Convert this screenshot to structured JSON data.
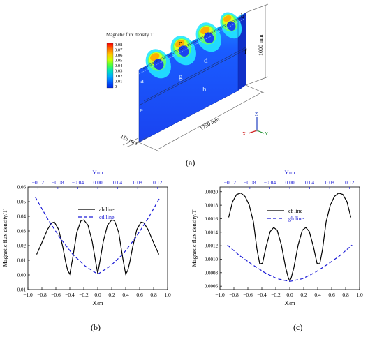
{
  "figure_a": {
    "label": "(a)",
    "colorbar": {
      "title": "Magnetic flux density  T",
      "ticks": [
        "0.08",
        "0.07",
        "0.06",
        "0.05",
        "0.04",
        "0.03",
        "0.02",
        "0.01",
        "0"
      ],
      "colors": [
        "#ff0000",
        "#ff6a00",
        "#ffc800",
        "#c8ff00",
        "#45ff45",
        "#00e0c0",
        "#00a8ff",
        "#005cff",
        "#0020e0"
      ]
    },
    "dimensions": {
      "height": "1000 mm",
      "length": "1750 mm",
      "thickness": "115 mm"
    },
    "points": {
      "a": "a",
      "b": "b",
      "c": "c",
      "d": "d",
      "e": "e",
      "f": "f",
      "g": "g",
      "h": "h"
    },
    "axes": {
      "z": "Z",
      "x": "X",
      "y": "Y"
    }
  },
  "chart_data": [
    {
      "type": "line",
      "panel": "(b)",
      "xlabel": "X/m",
      "ylabel": "Magnetic flux density/T",
      "top_xlabel": "Y/m",
      "x_ticks": [
        "−1.0",
        "−0.8",
        "−0.6",
        "−0.4",
        "−0.2",
        "0.0",
        "0.2",
        "0.4",
        "0.6",
        "0.8",
        "1.0"
      ],
      "top_ticks": [
        "−0.12",
        "−0.08",
        "−0.04",
        "0.00",
        "0.04",
        "0.08",
        "0.12"
      ],
      "y_ticks": [
        "−0.01",
        "0.00",
        "0.01",
        "0.02",
        "0.03",
        "0.04",
        "0.05",
        "0.06"
      ],
      "xlim": [
        -1.0,
        1.0
      ],
      "ylim": [
        -0.01,
        0.06
      ],
      "top_xlim": [
        -0.14,
        0.14
      ],
      "series": [
        {
          "name": "ab line",
          "axis": "bottom",
          "color": "#000000",
          "dash": "",
          "x": [
            -0.875,
            -0.8,
            -0.72,
            -0.66,
            -0.62,
            -0.56,
            -0.5,
            -0.46,
            -0.43,
            -0.4,
            -0.36,
            -0.3,
            -0.24,
            -0.2,
            -0.14,
            -0.08,
            -0.03,
            0.0,
            0.03,
            0.08,
            0.14,
            0.2,
            0.24,
            0.3,
            0.36,
            0.4,
            0.43,
            0.46,
            0.5,
            0.56,
            0.62,
            0.66,
            0.72,
            0.8,
            0.875
          ],
          "y": [
            0.014,
            0.022,
            0.031,
            0.0355,
            0.036,
            0.031,
            0.019,
            0.009,
            0.003,
            0.0005,
            0.011,
            0.029,
            0.037,
            0.0375,
            0.034,
            0.023,
            0.009,
            0.001,
            0.009,
            0.023,
            0.034,
            0.0375,
            0.037,
            0.029,
            0.011,
            0.0005,
            0.003,
            0.009,
            0.019,
            0.031,
            0.036,
            0.0355,
            0.031,
            0.022,
            0.014
          ]
        },
        {
          "name": "cd line",
          "axis": "top",
          "color": "#1a1ad6",
          "dash": "5,3",
          "x": [
            -0.125,
            -0.1,
            -0.075,
            -0.05,
            -0.025,
            0.0,
            0.025,
            0.05,
            0.075,
            0.1,
            0.125
          ],
          "y": [
            0.053,
            0.038,
            0.025,
            0.014,
            0.006,
            0.0005,
            0.006,
            0.014,
            0.025,
            0.038,
            0.053
          ]
        }
      ]
    },
    {
      "type": "line",
      "panel": "(c)",
      "xlabel": "X/m",
      "ylabel": "Magnetic flux density/T",
      "top_xlabel": "Y/m",
      "x_ticks": [
        "−1.0",
        "−0.8",
        "−0.6",
        "−0.4",
        "−0.2",
        "0.0",
        "0.2",
        "0.4",
        "0.6",
        "0.8",
        "1.0"
      ],
      "top_ticks": [
        "−0.12",
        "−0.08",
        "−0.04",
        "0.00",
        "0.04",
        "0.08",
        "0.12"
      ],
      "y_ticks": [
        "0.0006",
        "0.0008",
        "0.0010",
        "0.0012",
        "0.0014",
        "0.0016",
        "0.0018",
        "0.0020"
      ],
      "xlim": [
        -1.0,
        1.0
      ],
      "ylim": [
        0.00055,
        0.00207
      ],
      "top_xlim": [
        -0.14,
        0.14
      ],
      "series": [
        {
          "name": "ef line",
          "axis": "bottom",
          "color": "#000000",
          "dash": "",
          "x": [
            -0.875,
            -0.82,
            -0.76,
            -0.7,
            -0.64,
            -0.58,
            -0.52,
            -0.47,
            -0.43,
            -0.39,
            -0.34,
            -0.28,
            -0.23,
            -0.18,
            -0.12,
            -0.06,
            -0.02,
            0.0,
            0.02,
            0.06,
            0.12,
            0.18,
            0.23,
            0.28,
            0.34,
            0.39,
            0.43,
            0.47,
            0.52,
            0.58,
            0.64,
            0.7,
            0.76,
            0.82,
            0.875
          ],
          "y": [
            0.00162,
            0.00185,
            0.00196,
            0.00198,
            0.00193,
            0.0018,
            0.00155,
            0.00115,
            0.00093,
            0.00094,
            0.00118,
            0.00141,
            0.00147,
            0.00143,
            0.00121,
            0.00088,
            0.00072,
            0.00068,
            0.00072,
            0.00088,
            0.00121,
            0.00143,
            0.00147,
            0.00141,
            0.00118,
            0.00094,
            0.00093,
            0.00115,
            0.00155,
            0.0018,
            0.00193,
            0.00198,
            0.00196,
            0.00185,
            0.00162
          ]
        },
        {
          "name": "gh line",
          "axis": "top",
          "color": "#1a1ad6",
          "dash": "5,3",
          "x": [
            -0.125,
            -0.1,
            -0.075,
            -0.05,
            -0.025,
            0.0,
            0.025,
            0.05,
            0.075,
            0.1,
            0.125
          ],
          "y": [
            0.00121,
            0.00105,
            0.00092,
            0.0008,
            0.00071,
            0.00067,
            0.00071,
            0.0008,
            0.00092,
            0.00105,
            0.00121
          ]
        }
      ]
    }
  ]
}
